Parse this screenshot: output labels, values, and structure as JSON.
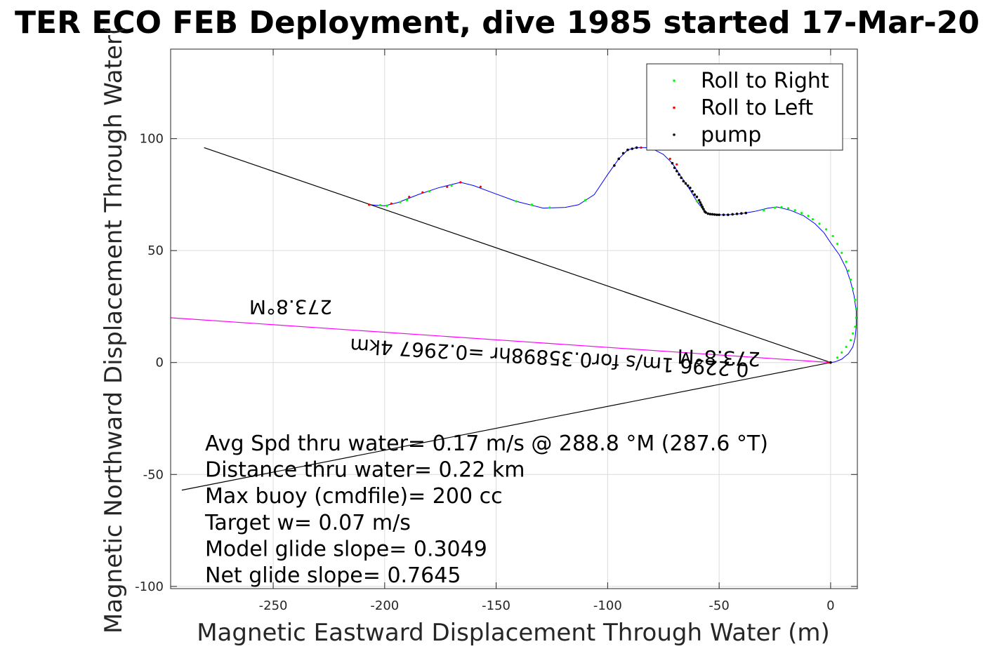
{
  "chart_data": {
    "type": "line",
    "title": "TER ECO FEB Deployment, dive 1985 started 17-Mar-20",
    "xlabel": "Magnetic Eastward Displacement Through Water (m)",
    "ylabel": "Magnetic Northward Displacement Through Water(",
    "xlim": [
      -296,
      12
    ],
    "ylim": [
      -101,
      140
    ],
    "xticks": [
      -250,
      -200,
      -150,
      -100,
      -50,
      0
    ],
    "yticks": [
      -100,
      -50,
      0,
      50,
      100
    ],
    "grid": true,
    "legend": {
      "placement": "top-right",
      "entries": [
        {
          "label": "Roll to Right",
          "color": "#00ff00"
        },
        {
          "label": "Roll to Left",
          "color": "#ff0000"
        },
        {
          "label": "pump",
          "color": "#000000"
        }
      ]
    },
    "series": [
      {
        "kind": "track",
        "color": "#0000ff",
        "x": [
          -207,
          -200,
          -194,
          -185,
          -176,
          -166,
          -160,
          -152,
          -141,
          -129,
          -119,
          -113,
          -106,
          -100,
          -95,
          -91,
          -87,
          -83,
          -79,
          -75,
          -71,
          -67,
          -63,
          -60,
          -57,
          -55,
          -52,
          -46,
          -40,
          -34,
          -28,
          -24,
          -18,
          -12,
          -7,
          -3,
          0,
          4,
          7,
          9,
          10.5,
          11.5,
          11.5,
          11,
          10,
          8,
          5,
          2,
          0
        ],
        "y": [
          70.5,
          70,
          71.5,
          75,
          78,
          80.5,
          79,
          76,
          72,
          69,
          69.3,
          70.5,
          75,
          84,
          91,
          95,
          96,
          96,
          95,
          93,
          89,
          83,
          77,
          72,
          68,
          66.5,
          66,
          66,
          66.5,
          67.5,
          69,
          69.5,
          68,
          65.5,
          62,
          58,
          53.5,
          48,
          42,
          36,
          30,
          23,
          16,
          11,
          7,
          4,
          1.5,
          0.3,
          0
        ]
      },
      {
        "kind": "heading-line",
        "color": "#000000",
        "x": [
          -281,
          0
        ],
        "y": [
          96,
          0
        ]
      },
      {
        "kind": "heading-line",
        "color": "#ff00ff",
        "x": [
          -296,
          0
        ],
        "y": [
          20,
          0
        ]
      },
      {
        "kind": "heading-line",
        "color": "#000000",
        "x": [
          -291,
          0
        ],
        "y": [
          -57,
          0
        ]
      }
    ],
    "markers": {
      "roll_right": {
        "color": "#00ff00",
        "x": [
          -202,
          -199,
          -193,
          -190,
          -180,
          -170,
          -141,
          -134,
          -126,
          -110,
          -60,
          -58,
          -30,
          -25,
          -22,
          -19,
          -16,
          -13,
          -10,
          -8,
          -5,
          -2,
          1,
          3,
          5,
          7,
          8,
          9,
          10,
          11,
          11.5,
          11.5,
          11,
          10,
          9,
          7,
          5,
          3
        ],
        "y": [
          70.3,
          70,
          71.6,
          72.5,
          76.5,
          79,
          72,
          70.5,
          69.2,
          72.5,
          72,
          70,
          68,
          69.2,
          69.4,
          68.9,
          68,
          66.8,
          65.5,
          64,
          62,
          59.5,
          56.5,
          53,
          49,
          45,
          41,
          37,
          33,
          28,
          24,
          20,
          16,
          13,
          10,
          7,
          4.5,
          2.2
        ]
      },
      "roll_left": {
        "color": "#ff0000",
        "x": [
          -207,
          -197,
          -189,
          -183,
          -172,
          -166,
          -157,
          -85,
          -79,
          -72,
          -69,
          -1
        ],
        "y": [
          70.5,
          71,
          74,
          76,
          78.5,
          80.5,
          78.5,
          96,
          96,
          91,
          88.5,
          0
        ]
      },
      "pump": {
        "color": "#000000",
        "x": [
          -97,
          -95,
          -93,
          -91,
          -89,
          -87,
          -71,
          -70,
          -69,
          -68,
          -67,
          -66,
          -65,
          -64,
          -63,
          -62,
          -61,
          -60,
          -59,
          -58.5,
          -58,
          -57.5,
          -57,
          -56.5,
          -56,
          -55,
          -54,
          -53,
          -52,
          -51,
          -50,
          -48,
          -46,
          -44,
          -42,
          -40,
          -38,
          0
        ],
        "y": [
          88,
          91,
          93.5,
          95,
          95.5,
          96,
          89,
          87,
          85.5,
          84,
          82.5,
          81,
          80,
          79,
          78,
          76.5,
          75,
          74,
          72.5,
          71.5,
          70.5,
          69.5,
          68.5,
          67.5,
          67,
          66.5,
          66.3,
          66.2,
          66.1,
          66,
          66,
          66,
          66,
          66.2,
          66.4,
          66.6,
          66.8,
          0
        ]
      }
    },
    "annotations": {
      "summary": [
        "Avg Spd thru water=  0.17 m/s @ 288.8 °M (287.6 °T)",
        "Distance thru water=  0.22 km",
        "Max buoy (cmdfile)= 200 cc",
        "Target w= 0.07 m/s",
        "Model glide slope= 0.3049",
        "Net glide slope= 0.7645"
      ],
      "flipped_heading_1": "273.8°M",
      "flipped_heading_2": "273.8°M",
      "flipped_speed": "0.2296 1m/s for0.35898hr =0.2967 4km"
    }
  }
}
